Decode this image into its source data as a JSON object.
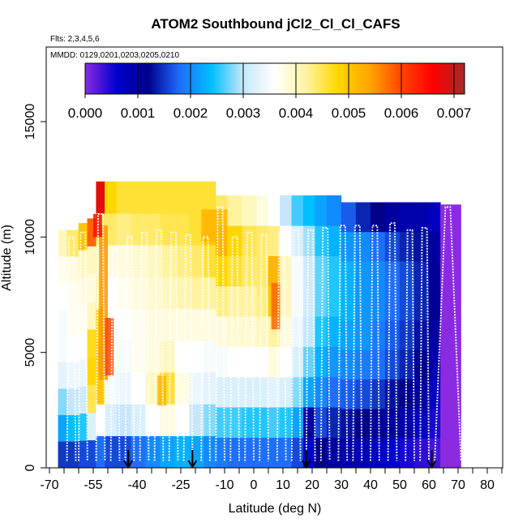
{
  "chart_data": {
    "type": "heatmap",
    "title": "ATOM2 Southbound jCl2_Cl_Cl_CAFS",
    "flights_note": "Flts: 2,3,4,5,6",
    "dates_note": "MMDD: 0129,0201,0203,0205,0210",
    "xlabel": "Latitude (deg N)",
    "ylabel": "Altitude (m)",
    "xlim": [
      -70,
      85
    ],
    "ylim": [
      0,
      17500
    ],
    "x_ticks": [
      {
        "value": -70,
        "label": "-70"
      },
      {
        "value": -55,
        "label": "-55"
      },
      {
        "value": -40,
        "label": "-40"
      },
      {
        "value": -25,
        "label": "-25"
      },
      {
        "value": -10,
        "label": "-10"
      },
      {
        "value": 0,
        "label": "0"
      },
      {
        "value": 10,
        "label": "10"
      },
      {
        "value": 20,
        "label": "20"
      },
      {
        "value": 30,
        "label": "30"
      },
      {
        "value": 40,
        "label": "40"
      },
      {
        "value": 50,
        "label": "50"
      },
      {
        "value": 60,
        "label": "60"
      },
      {
        "value": 70,
        "label": "70"
      },
      {
        "value": 80,
        "label": "80"
      }
    ],
    "y_ticks": [
      {
        "value": 0,
        "label": "0"
      },
      {
        "value": 5000,
        "label": "5000"
      },
      {
        "value": 10000,
        "label": "10000"
      },
      {
        "value": 15000,
        "label": "15000"
      }
    ],
    "colorbar": {
      "range": [
        0,
        0.0072
      ],
      "ticks": [
        {
          "value": 0.0,
          "label": "0.000"
        },
        {
          "value": 0.001,
          "label": "0.001"
        },
        {
          "value": 0.002,
          "label": "0.002"
        },
        {
          "value": 0.003,
          "label": "0.003"
        },
        {
          "value": 0.004,
          "label": "0.004"
        },
        {
          "value": 0.005,
          "label": "0.005"
        },
        {
          "value": 0.006,
          "label": "0.006"
        },
        {
          "value": 0.007,
          "label": "0.007"
        }
      ],
      "colormap": [
        "#8a2be2",
        "#0000cd",
        "#00008b",
        "#1e6fff",
        "#00bfff",
        "#c6e7fa",
        "#ffffff",
        "#fff3a0",
        "#ffd700",
        "#ffa500",
        "#ff4500",
        "#ff0000",
        "#a52a2a"
      ]
    },
    "arrow_latitudes": [
      -43,
      -21,
      18,
      61
    ],
    "track_color": "#ffffff",
    "columns": [
      {
        "lat0": -67,
        "lat1": -64,
        "alt_top": 10300,
        "values": [
          0.0015,
          0.0022,
          0.0028,
          0.0033,
          0.0035,
          0.0035,
          0.0036,
          0.0037,
          0.004
        ]
      },
      {
        "lat0": -64,
        "lat1": -60,
        "alt_top": 10300,
        "values": [
          0.0015,
          0.0024,
          0.003,
          0.0034,
          0.0036,
          0.0037,
          0.0037,
          0.0038,
          0.0044
        ]
      },
      {
        "lat0": -60,
        "lat1": -57,
        "alt_top": 10600,
        "values": [
          0.0016,
          0.0025,
          0.0031,
          0.0034,
          0.0036,
          0.0037,
          0.0038,
          0.004,
          0.005
        ]
      },
      {
        "lat0": -57,
        "lat1": -54,
        "alt_top": 10800,
        "values": [
          0.0016,
          0.0032,
          0.0045,
          0.0048,
          0.0047,
          0.004,
          0.0038,
          0.004,
          0.0058
        ]
      },
      {
        "lat0": -54,
        "lat1": -51,
        "alt_top": 12400,
        "values": [
          0.0018,
          0.0036,
          0.005,
          0.0052,
          0.005,
          0.0042,
          0.004,
          0.0045,
          0.0068
        ]
      },
      {
        "lat0": -51,
        "lat1": -47,
        "alt_top": 12400,
        "values": [
          0.0016,
          0.0032,
          0.0035,
          0.0036,
          0.0036,
          0.0036,
          0.0038,
          0.0044,
          0.0048
        ]
      },
      {
        "lat0": -47,
        "lat1": -42,
        "alt_top": 12400,
        "values": [
          0.0016,
          0.003,
          0.0034,
          0.0035,
          0.0036,
          0.0037,
          0.0038,
          0.0043,
          0.0046
        ]
      },
      {
        "lat0": -42,
        "lat1": -37,
        "alt_top": 12400,
        "values": [
          0.0018,
          0.0032,
          0.0036,
          0.0037,
          0.0037,
          0.0038,
          0.0039,
          0.0044,
          0.0046
        ]
      },
      {
        "lat0": -37,
        "lat1": -32,
        "alt_top": 12400,
        "values": [
          0.002,
          0.0036,
          0.004,
          0.0038,
          0.0038,
          0.0039,
          0.004,
          0.0044,
          0.0046
        ]
      },
      {
        "lat0": -32,
        "lat1": -27,
        "alt_top": 12400,
        "values": [
          0.0022,
          0.0038,
          0.0046,
          0.004,
          0.0038,
          0.004,
          0.0042,
          0.0045,
          0.0046
        ]
      },
      {
        "lat0": -27,
        "lat1": -22,
        "alt_top": 12400,
        "values": [
          0.0023,
          0.0036,
          0.0038,
          0.0036,
          0.0038,
          0.0041,
          0.0043,
          0.0045,
          0.0046
        ]
      },
      {
        "lat0": -22,
        "lat1": -17,
        "alt_top": 12400,
        "values": [
          0.0022,
          0.003,
          0.0034,
          0.0036,
          0.0038,
          0.0042,
          0.0044,
          0.0046,
          0.0046
        ]
      },
      {
        "lat0": -17,
        "lat1": -13,
        "alt_top": 12400,
        "values": [
          0.002,
          0.0028,
          0.0033,
          0.0035,
          0.0038,
          0.0042,
          0.0046,
          0.005,
          0.0046
        ]
      },
      {
        "lat0": -13,
        "lat1": -9,
        "alt_top": 11800,
        "values": [
          0.0019,
          0.0026,
          0.0032,
          0.0035,
          0.0038,
          0.0043,
          0.0048,
          0.0052,
          0.0044
        ]
      },
      {
        "lat0": -9,
        "lat1": -4,
        "alt_top": 11800,
        "values": [
          0.0018,
          0.0026,
          0.0032,
          0.0036,
          0.0039,
          0.0042,
          0.0046,
          0.0048,
          0.0042
        ]
      },
      {
        "lat0": -4,
        "lat1": 1,
        "alt_top": 11800,
        "values": [
          0.0018,
          0.0025,
          0.0032,
          0.0036,
          0.0039,
          0.0042,
          0.0044,
          0.0045,
          0.004
        ]
      },
      {
        "lat0": 1,
        "lat1": 5,
        "alt_top": 11800,
        "values": [
          0.0018,
          0.0025,
          0.0032,
          0.0036,
          0.004,
          0.0043,
          0.0044,
          0.0044,
          0.0038
        ]
      },
      {
        "lat0": 5,
        "lat1": 9,
        "alt_top": 11800,
        "values": [
          0.0018,
          0.0026,
          0.0033,
          0.0038,
          0.0042,
          0.005,
          0.0052,
          0.0043,
          0.0036
        ]
      },
      {
        "lat0": 9,
        "lat1": 13,
        "alt_top": 11800,
        "values": [
          0.0018,
          0.0025,
          0.0032,
          0.0036,
          0.0038,
          0.004,
          0.004,
          0.0036,
          0.003
        ]
      },
      {
        "lat0": 13,
        "lat1": 17,
        "alt_top": 11800,
        "values": [
          0.0016,
          0.0022,
          0.0028,
          0.0032,
          0.0034,
          0.0035,
          0.0035,
          0.0032,
          0.0026
        ]
      },
      {
        "lat0": 17,
        "lat1": 21,
        "alt_top": 11800,
        "values": [
          0.0006,
          0.001,
          0.0022,
          0.0027,
          0.003,
          0.0031,
          0.0031,
          0.0029,
          0.0024
        ]
      },
      {
        "lat0": 21,
        "lat1": 25,
        "alt_top": 11800,
        "values": [
          0.0012,
          0.0016,
          0.002,
          0.0023,
          0.0025,
          0.0027,
          0.0027,
          0.0025,
          0.0022
        ]
      },
      {
        "lat0": 25,
        "lat1": 30,
        "alt_top": 11800,
        "values": [
          0.001,
          0.0014,
          0.0018,
          0.0021,
          0.0023,
          0.0025,
          0.0025,
          0.0023,
          0.002
        ]
      },
      {
        "lat0": 30,
        "lat1": 35,
        "alt_top": 11500,
        "values": [
          0.0009,
          0.0013,
          0.0017,
          0.002,
          0.0022,
          0.0023,
          0.0023,
          0.0021,
          0.0017
        ]
      },
      {
        "lat0": 35,
        "lat1": 40,
        "alt_top": 11500,
        "values": [
          0.0008,
          0.0012,
          0.0016,
          0.0019,
          0.0021,
          0.0021,
          0.0021,
          0.002,
          0.0014
        ]
      },
      {
        "lat0": 40,
        "lat1": 45,
        "alt_top": 11500,
        "values": [
          0.0007,
          0.0011,
          0.0015,
          0.0018,
          0.0019,
          0.002,
          0.002,
          0.0018,
          0.0012
        ]
      },
      {
        "lat0": 45,
        "lat1": 50,
        "alt_top": 11500,
        "values": [
          0.0006,
          0.001,
          0.0013,
          0.0016,
          0.0017,
          0.0018,
          0.0018,
          0.0016,
          0.001
        ]
      },
      {
        "lat0": 50,
        "lat1": 55,
        "alt_top": 11500,
        "values": [
          0.0005,
          0.0009,
          0.0012,
          0.0014,
          0.0015,
          0.0016,
          0.0016,
          0.0014,
          0.0009
        ]
      },
      {
        "lat0": 55,
        "lat1": 60,
        "alt_top": 11500,
        "values": [
          0.0004,
          0.0007,
          0.001,
          0.0012,
          0.0013,
          0.0014,
          0.0014,
          0.0013,
          0.0009
        ]
      },
      {
        "lat0": 60,
        "lat1": 64,
        "alt_top": 11500,
        "values": [
          0.0003,
          0.0005,
          0.0007,
          0.0009,
          0.001,
          0.0011,
          0.0011,
          0.001,
          0.0007
        ]
      },
      {
        "lat0": 64,
        "lat1": 71,
        "alt_top": 11400,
        "values": [
          0.0,
          0.0,
          0.0,
          0.0,
          0.0,
          0.0,
          0.0,
          0.0,
          0.0
        ]
      }
    ],
    "hotspots": [
      {
        "lat0": -53,
        "lat1": -50,
        "alt0": 3800,
        "alt1": 10500,
        "value": 0.0055
      },
      {
        "lat0": -51,
        "lat1": -48,
        "alt0": 4000,
        "alt1": 6500,
        "value": 0.006
      },
      {
        "lat0": -33,
        "lat1": -30,
        "alt0": 2700,
        "alt1": 4000,
        "value": 0.0052
      },
      {
        "lat0": 6,
        "lat1": 9,
        "alt0": 6000,
        "alt1": 8000,
        "value": 0.0058
      },
      {
        "lat0": -18,
        "lat1": -9,
        "alt0": 9800,
        "alt1": 11200,
        "value": 0.0052
      },
      {
        "lat0": -55,
        "lat1": -52,
        "alt0": 10000,
        "alt1": 11000,
        "value": 0.0065
      }
    ],
    "flight_profiles": [
      {
        "lat_start": -64,
        "lat_end": -61,
        "alt_top": 10000
      },
      {
        "lat_start": -60,
        "lat_end": -57,
        "alt_top": 10200
      },
      {
        "lat_start": -54,
        "lat_end": -51,
        "alt_top": 11000
      },
      {
        "lat_start": -49,
        "lat_end": -46,
        "alt_top": 9500
      },
      {
        "lat_start": -44,
        "lat_end": -41,
        "alt_top": 10000
      },
      {
        "lat_start": -39,
        "lat_end": -36,
        "alt_top": 10200
      },
      {
        "lat_start": -34,
        "lat_end": -31,
        "alt_top": 10300
      },
      {
        "lat_start": -29,
        "lat_end": -26,
        "alt_top": 10200
      },
      {
        "lat_start": -24,
        "lat_end": -21,
        "alt_top": 10100
      },
      {
        "lat_start": -18,
        "lat_end": -15,
        "alt_top": 10000
      },
      {
        "lat_start": -13,
        "lat_end": -10,
        "alt_top": 11300
      },
      {
        "lat_start": -8,
        "lat_end": -5,
        "alt_top": 10000
      },
      {
        "lat_start": -3,
        "lat_end": 0,
        "alt_top": 10200
      },
      {
        "lat_start": 2,
        "lat_end": 5,
        "alt_top": 10100
      },
      {
        "lat_start": 8,
        "lat_end": 11,
        "alt_top": 10200
      },
      {
        "lat_start": 13,
        "lat_end": 16,
        "alt_top": 10300
      },
      {
        "lat_start": 18,
        "lat_end": 21,
        "alt_top": 10300
      },
      {
        "lat_start": 23,
        "lat_end": 26,
        "alt_top": 10400
      },
      {
        "lat_start": 29,
        "lat_end": 32,
        "alt_top": 10500
      },
      {
        "lat_start": 34,
        "lat_end": 37,
        "alt_top": 10500
      },
      {
        "lat_start": 40,
        "lat_end": 43,
        "alt_top": 10500
      },
      {
        "lat_start": 46,
        "lat_end": 49,
        "alt_top": 10600
      },
      {
        "lat_start": 52,
        "lat_end": 55,
        "alt_top": 10300
      },
      {
        "lat_start": 57,
        "lat_end": 60,
        "alt_top": 10400
      },
      {
        "lat_start": 62,
        "lat_end": 71,
        "alt_top": 11300
      }
    ]
  }
}
